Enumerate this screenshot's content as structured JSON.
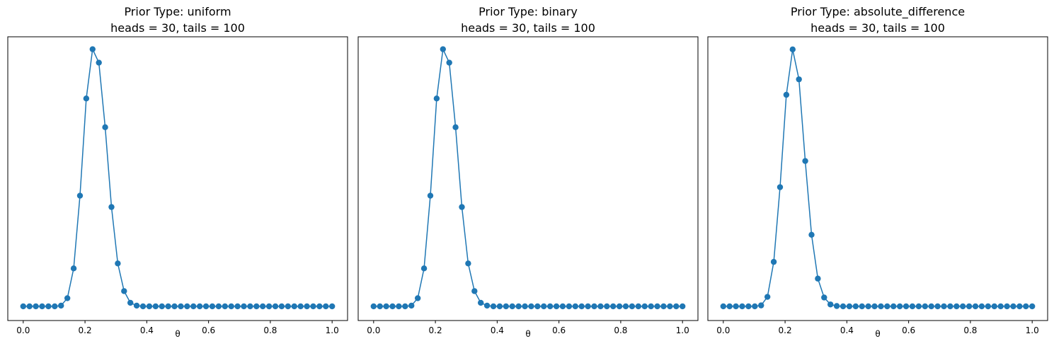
{
  "figure": {
    "background": "#ffffff",
    "line_color": "#1f77b4"
  },
  "chart_data": [
    {
      "type": "line",
      "title": "Prior Type: uniform",
      "subtitle": "heads = 30, tails = 100",
      "xlabel": "θ",
      "ylabel": "",
      "xlim": [
        -0.05,
        1.05
      ],
      "ylim": [
        -0.4,
        7.6
      ],
      "xticks": [
        "0.0",
        "0.2",
        "0.4",
        "0.6",
        "0.8",
        "1.0"
      ],
      "show_yticks": false,
      "grid": false,
      "marker": "circle",
      "series": [
        {
          "x": [
            0.0,
            0.0204,
            0.0408,
            0.0612,
            0.0816,
            0.102,
            0.1224,
            0.1429,
            0.1633,
            0.1837,
            0.2041,
            0.2245,
            0.2449,
            0.2653,
            0.2857,
            0.3061,
            0.3265,
            0.3469,
            0.3673,
            0.3878,
            0.4082,
            0.4286,
            0.449,
            0.4694,
            0.4898,
            0.5102,
            0.5306,
            0.551,
            0.5714,
            0.5918,
            0.6122,
            0.6327,
            0.6531,
            0.6735,
            0.6939,
            0.7143,
            0.7347,
            0.7551,
            0.7755,
            0.7959,
            0.8163,
            0.8367,
            0.8571,
            0.8776,
            0.898,
            0.9184,
            0.9388,
            0.9592,
            0.9796,
            1.0
          ],
          "y": [
            0.0,
            0.0,
            0.0,
            0.0,
            0.0,
            0.0,
            0.02,
            0.23,
            1.07,
            3.12,
            5.86,
            7.25,
            6.87,
            5.05,
            2.8,
            1.21,
            0.43,
            0.1,
            0.02,
            0.0,
            0.0,
            0.0,
            0.0,
            0.0,
            0.0,
            0.0,
            0.0,
            0.0,
            0.0,
            0.0,
            0.0,
            0.0,
            0.0,
            0.0,
            0.0,
            0.0,
            0.0,
            0.0,
            0.0,
            0.0,
            0.0,
            0.0,
            0.0,
            0.0,
            0.0,
            0.0,
            0.0,
            0.0,
            0.0,
            0.0
          ]
        }
      ]
    },
    {
      "type": "line",
      "title": "Prior Type: binary",
      "subtitle": "heads = 30, tails = 100",
      "xlabel": "θ",
      "ylabel": "",
      "xlim": [
        -0.05,
        1.05
      ],
      "ylim": [
        -0.4,
        7.6
      ],
      "xticks": [
        "0.0",
        "0.2",
        "0.4",
        "0.6",
        "0.8",
        "1.0"
      ],
      "show_yticks": false,
      "grid": false,
      "marker": "circle",
      "series": [
        {
          "x": [
            0.0,
            0.0204,
            0.0408,
            0.0612,
            0.0816,
            0.102,
            0.1224,
            0.1429,
            0.1633,
            0.1837,
            0.2041,
            0.2245,
            0.2449,
            0.2653,
            0.2857,
            0.3061,
            0.3265,
            0.3469,
            0.3673,
            0.3878,
            0.4082,
            0.4286,
            0.449,
            0.4694,
            0.4898,
            0.5102,
            0.5306,
            0.551,
            0.5714,
            0.5918,
            0.6122,
            0.6327,
            0.6531,
            0.6735,
            0.6939,
            0.7143,
            0.7347,
            0.7551,
            0.7755,
            0.7959,
            0.8163,
            0.8367,
            0.8571,
            0.8776,
            0.898,
            0.9184,
            0.9388,
            0.9592,
            0.9796,
            1.0
          ],
          "y": [
            0.0,
            0.0,
            0.0,
            0.0,
            0.0,
            0.0,
            0.02,
            0.23,
            1.07,
            3.12,
            5.86,
            7.25,
            6.87,
            5.05,
            2.8,
            1.21,
            0.43,
            0.1,
            0.02,
            0.0,
            0.0,
            0.0,
            0.0,
            0.0,
            0.0,
            0.0,
            0.0,
            0.0,
            0.0,
            0.0,
            0.0,
            0.0,
            0.0,
            0.0,
            0.0,
            0.0,
            0.0,
            0.0,
            0.0,
            0.0,
            0.0,
            0.0,
            0.0,
            0.0,
            0.0,
            0.0,
            0.0,
            0.0,
            0.0,
            0.0
          ]
        }
      ]
    },
    {
      "type": "line",
      "title": "Prior Type: absolute_difference",
      "subtitle": "heads = 30, tails = 100",
      "xlabel": "θ",
      "ylabel": "",
      "xlim": [
        -0.05,
        1.05
      ],
      "ylim": [
        -0.45,
        8.55
      ],
      "xticks": [
        "0.0",
        "0.2",
        "0.4",
        "0.6",
        "0.8",
        "1.0"
      ],
      "show_yticks": false,
      "grid": false,
      "marker": "circle",
      "series": [
        {
          "x": [
            0.0,
            0.0204,
            0.0408,
            0.0612,
            0.0816,
            0.102,
            0.1224,
            0.1429,
            0.1633,
            0.1837,
            0.2041,
            0.2245,
            0.2449,
            0.2653,
            0.2857,
            0.3061,
            0.3265,
            0.3469,
            0.3673,
            0.3878,
            0.4082,
            0.4286,
            0.449,
            0.4694,
            0.4898,
            0.5102,
            0.5306,
            0.551,
            0.5714,
            0.5918,
            0.6122,
            0.6327,
            0.6531,
            0.6735,
            0.6939,
            0.7143,
            0.7347,
            0.7551,
            0.7755,
            0.7959,
            0.8163,
            0.8367,
            0.8571,
            0.8776,
            0.898,
            0.9184,
            0.9388,
            0.9592,
            0.9796,
            1.0
          ],
          "y": [
            0.0,
            0.0,
            0.0,
            0.0,
            0.0,
            0.0,
            0.03,
            0.3,
            1.41,
            3.78,
            6.71,
            8.15,
            7.2,
            4.61,
            2.27,
            0.88,
            0.28,
            0.06,
            0.01,
            0.0,
            0.0,
            0.0,
            0.0,
            0.0,
            0.0,
            0.0,
            0.0,
            0.0,
            0.0,
            0.0,
            0.0,
            0.0,
            0.0,
            0.0,
            0.0,
            0.0,
            0.0,
            0.0,
            0.0,
            0.0,
            0.0,
            0.0,
            0.0,
            0.0,
            0.0,
            0.0,
            0.0,
            0.0,
            0.0,
            0.0
          ]
        }
      ]
    }
  ]
}
